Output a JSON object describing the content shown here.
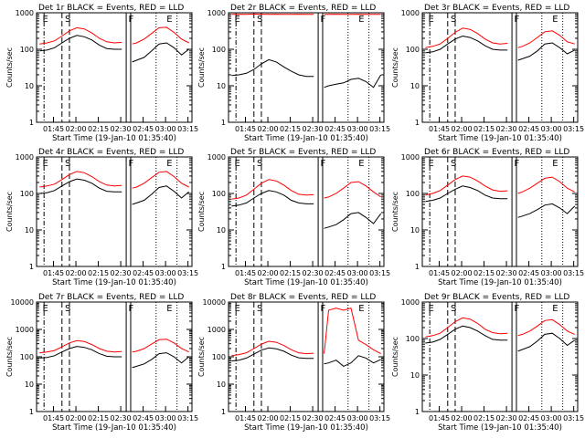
{
  "figure": {
    "xlabel": "Start Time (19-Jan-10 01:35:40)",
    "ylabel": "Counts/sec",
    "xticks": [
      "01:45",
      "02:00",
      "02:15",
      "02:30",
      "02:45",
      "03:00",
      "03:15"
    ],
    "colors": {
      "events": "#000000",
      "lld": "#ff0000"
    }
  },
  "chart_data": [
    {
      "type": "line",
      "title": "Det 1r BLACK = Events, RED = LLD",
      "scale": "log",
      "ylim": [
        1,
        1000
      ],
      "yticks": [
        "1",
        "10",
        "100",
        "1000"
      ],
      "x_unit": "minutes after 01:35:40",
      "x": [
        0,
        5,
        10,
        15,
        20,
        25,
        30,
        35,
        40,
        45,
        50,
        55,
        60,
        62,
        65,
        70,
        75,
        80,
        85,
        90,
        95,
        100
      ],
      "series": [
        {
          "name": "Events",
          "values": [
            90,
            95,
            110,
            150,
            200,
            240,
            220,
            180,
            130,
            105,
            100,
            100,
            105,
            45,
            50,
            60,
            90,
            140,
            150,
            110,
            70,
            100
          ]
        },
        {
          "name": "LLD",
          "values": [
            140,
            150,
            170,
            230,
            320,
            390,
            360,
            280,
            200,
            160,
            150,
            155,
            160,
            140,
            150,
            190,
            270,
            390,
            400,
            290,
            190,
            150
          ]
        }
      ],
      "annotations": [
        "E",
        "S",
        "F",
        "E"
      ]
    },
    {
      "type": "line",
      "title": "Det 2r BLACK = Events, RED = LLD",
      "scale": "log",
      "ylim": [
        1,
        1000
      ],
      "yticks": [
        "1",
        "10",
        "100",
        "1000"
      ],
      "x_unit": "minutes after 01:35:40",
      "x": [
        0,
        5,
        10,
        15,
        20,
        25,
        30,
        35,
        40,
        45,
        50,
        55,
        60,
        62,
        65,
        70,
        75,
        80,
        85,
        90,
        95,
        100
      ],
      "series": [
        {
          "name": "Events",
          "values": [
            19,
            20,
            22,
            28,
            40,
            52,
            45,
            33,
            25,
            20,
            18,
            18,
            19,
            9,
            10,
            11,
            12,
            15,
            16,
            13,
            9,
            20
          ]
        },
        {
          "name": "LLD",
          "values": [
            900,
            910,
            900,
            920,
            910,
            900,
            910,
            905,
            900,
            910,
            905,
            900,
            910,
            900,
            905,
            910,
            900,
            905,
            910,
            900,
            905,
            900
          ]
        }
      ],
      "annotations": [
        "E",
        "S",
        "F",
        "E"
      ]
    },
    {
      "type": "line",
      "title": "Det 3r BLACK = Events, RED = LLD",
      "scale": "log",
      "ylim": [
        1,
        1000
      ],
      "yticks": [
        "1",
        "10",
        "100",
        "1000"
      ],
      "x_unit": "minutes after 01:35:40",
      "x": [
        0,
        5,
        10,
        15,
        20,
        25,
        30,
        35,
        40,
        45,
        50,
        55,
        60,
        62,
        65,
        70,
        75,
        80,
        85,
        90,
        95,
        100
      ],
      "series": [
        {
          "name": "Events",
          "values": [
            80,
            85,
            100,
            140,
            190,
            230,
            210,
            170,
            125,
            100,
            95,
            95,
            100,
            50,
            55,
            65,
            90,
            140,
            150,
            110,
            75,
            95
          ]
        },
        {
          "name": "LLD",
          "values": [
            110,
            120,
            140,
            200,
            290,
            380,
            350,
            270,
            190,
            150,
            140,
            145,
            150,
            110,
            120,
            150,
            210,
            300,
            320,
            240,
            160,
            140
          ]
        }
      ],
      "annotations": [
        "E",
        "S",
        "F",
        "E"
      ]
    },
    {
      "type": "line",
      "title": "Det 4r BLACK = Events, RED = LLD",
      "scale": "log",
      "ylim": [
        1,
        1000
      ],
      "yticks": [
        "1",
        "10",
        "100",
        "1000"
      ],
      "x_unit": "minutes after 01:35:40",
      "x": [
        0,
        5,
        10,
        15,
        20,
        25,
        30,
        35,
        40,
        45,
        50,
        55,
        60,
        62,
        65,
        70,
        75,
        80,
        85,
        90,
        95,
        100
      ],
      "series": [
        {
          "name": "Events",
          "values": [
            100,
            105,
            120,
            160,
            210,
            250,
            230,
            190,
            140,
            115,
            110,
            110,
            115,
            50,
            55,
            65,
            95,
            145,
            160,
            115,
            75,
            110
          ]
        },
        {
          "name": "LLD",
          "values": [
            150,
            160,
            180,
            240,
            330,
            400,
            370,
            290,
            210,
            170,
            160,
            165,
            170,
            140,
            150,
            190,
            270,
            380,
            400,
            290,
            190,
            150
          ]
        }
      ],
      "annotations": [
        "E",
        "S",
        "F",
        "E"
      ]
    },
    {
      "type": "line",
      "title": "Det 5r BLACK = Events, RED = LLD",
      "scale": "log",
      "ylim": [
        1,
        1000
      ],
      "yticks": [
        "1",
        "10",
        "100",
        "1000"
      ],
      "x_unit": "minutes after 01:35:40",
      "x": [
        0,
        5,
        10,
        15,
        20,
        25,
        30,
        35,
        40,
        45,
        50,
        55,
        60,
        62,
        65,
        70,
        75,
        80,
        85,
        90,
        95,
        100
      ],
      "series": [
        {
          "name": "Events",
          "values": [
            45,
            48,
            55,
            75,
            100,
            120,
            110,
            90,
            65,
            55,
            52,
            52,
            55,
            11,
            12,
            14,
            19,
            28,
            30,
            22,
            15,
            28
          ]
        },
        {
          "name": "LLD",
          "values": [
            70,
            75,
            90,
            130,
            190,
            240,
            220,
            170,
            120,
            95,
            90,
            92,
            95,
            75,
            80,
            100,
            140,
            200,
            210,
            160,
            110,
            80
          ]
        }
      ],
      "annotations": [
        "E",
        "S",
        "F",
        "E"
      ]
    },
    {
      "type": "line",
      "title": "Det 6r BLACK = Events, RED = LLD",
      "scale": "log",
      "ylim": [
        1,
        1000
      ],
      "yticks": [
        "1",
        "10",
        "100",
        "1000"
      ],
      "x_unit": "minutes after 01:35:40",
      "x": [
        0,
        5,
        10,
        15,
        20,
        25,
        30,
        35,
        40,
        45,
        50,
        55,
        60,
        62,
        65,
        70,
        75,
        80,
        85,
        90,
        95,
        100
      ],
      "series": [
        {
          "name": "Events",
          "values": [
            60,
            65,
            75,
            100,
            130,
            160,
            145,
            120,
            90,
            75,
            72,
            72,
            75,
            22,
            24,
            28,
            36,
            48,
            52,
            40,
            28,
            45
          ]
        },
        {
          "name": "LLD",
          "values": [
            90,
            100,
            120,
            170,
            240,
            300,
            280,
            220,
            160,
            125,
            115,
            118,
            120,
            100,
            110,
            140,
            190,
            260,
            280,
            210,
            140,
            110
          ]
        }
      ],
      "annotations": [
        "E",
        "S",
        "F",
        "E"
      ]
    },
    {
      "type": "line",
      "title": "Det 7r BLACK = Events, RED = LLD",
      "scale": "log",
      "ylim": [
        1,
        10000
      ],
      "yticks": [
        "1",
        "10",
        "100",
        "1000",
        "10000"
      ],
      "x_unit": "minutes after 01:35:40",
      "x": [
        0,
        5,
        10,
        15,
        20,
        25,
        30,
        35,
        40,
        45,
        50,
        55,
        60,
        62,
        65,
        70,
        75,
        80,
        85,
        90,
        95,
        100
      ],
      "series": [
        {
          "name": "Events",
          "values": [
            90,
            95,
            110,
            150,
            200,
            240,
            220,
            180,
            130,
            105,
            100,
            100,
            105,
            40,
            45,
            55,
            80,
            130,
            140,
            100,
            60,
            100
          ]
        },
        {
          "name": "LLD",
          "values": [
            140,
            150,
            170,
            230,
            320,
            390,
            360,
            280,
            200,
            160,
            150,
            155,
            160,
            150,
            160,
            200,
            290,
            420,
            440,
            320,
            200,
            150
          ]
        }
      ],
      "annotations": [
        "E",
        "S",
        "F",
        "E"
      ]
    },
    {
      "type": "line",
      "title": "Det 8r BLACK = Events, RED = LLD",
      "scale": "log",
      "ylim": [
        1,
        10000
      ],
      "yticks": [
        "1",
        "10",
        "100",
        "1000",
        "10000"
      ],
      "x_unit": "minutes after 01:35:40",
      "x": [
        0,
        5,
        10,
        15,
        20,
        25,
        30,
        35,
        40,
        45,
        50,
        55,
        60,
        62,
        65,
        70,
        75,
        80,
        85,
        90,
        95,
        100
      ],
      "series": [
        {
          "name": "Events",
          "values": [
            70,
            75,
            90,
            125,
            175,
            210,
            195,
            160,
            115,
            92,
            88,
            88,
            92,
            55,
            60,
            75,
            45,
            60,
            110,
            90,
            60,
            80
          ]
        },
        {
          "name": "LLD",
          "values": [
            110,
            120,
            140,
            200,
            290,
            370,
            340,
            260,
            180,
            140,
            130,
            135,
            140,
            130,
            5000,
            6000,
            5000,
            6000,
            400,
            280,
            180,
            130
          ]
        }
      ],
      "annotations": [
        "E",
        "S",
        "F",
        "E"
      ]
    },
    {
      "type": "line",
      "title": "Det 9r BLACK = Events, RED = LLD",
      "scale": "log",
      "ylim": [
        1,
        1000
      ],
      "yticks": [
        "1",
        "10",
        "100",
        "1000"
      ],
      "x_unit": "minutes after 01:35:40",
      "x": [
        0,
        5,
        10,
        15,
        20,
        25,
        30,
        35,
        40,
        45,
        50,
        55,
        60,
        62,
        65,
        70,
        75,
        80,
        85,
        90,
        95,
        100
      ],
      "series": [
        {
          "name": "Events",
          "values": [
            75,
            80,
            95,
            130,
            180,
            220,
            200,
            160,
            120,
            95,
            90,
            90,
            95,
            45,
            50,
            60,
            85,
            130,
            140,
            100,
            65,
            90
          ]
        },
        {
          "name": "LLD",
          "values": [
            110,
            120,
            140,
            200,
            290,
            370,
            340,
            260,
            180,
            145,
            135,
            140,
            145,
            120,
            130,
            160,
            220,
            310,
            330,
            240,
            160,
            130
          ]
        }
      ],
      "annotations": [
        "E",
        "S",
        "F",
        "E"
      ]
    }
  ]
}
